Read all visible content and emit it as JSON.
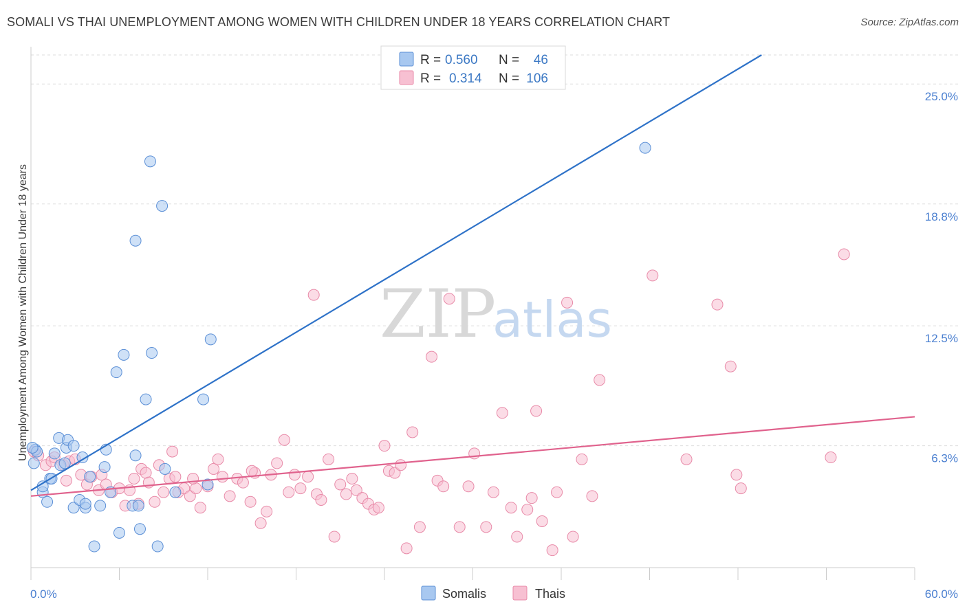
{
  "title": "SOMALI VS THAI UNEMPLOYMENT AMONG WOMEN WITH CHILDREN UNDER 18 YEARS CORRELATION CHART",
  "source": "Source: ZipAtlas.com",
  "watermark": {
    "zip": "ZIP",
    "atlas": "atlas"
  },
  "legend": {
    "somali": {
      "r_label": "R =",
      "r_value": "0.560",
      "n_label": "N =",
      "n_value": "46"
    },
    "thai": {
      "r_label": "R =",
      "r_value": "0.314",
      "n_label": "N =",
      "n_value": "106"
    }
  },
  "colors": {
    "somali_fill": "#a8c8f0",
    "somali_stroke": "#5b8fd6",
    "somali_line": "#2e72c8",
    "thai_fill": "#f7c0d2",
    "thai_stroke": "#e88aa8",
    "thai_line": "#e0628d",
    "grid": "#dddddd",
    "tick_label": "#4a7fd0"
  },
  "chart_data": {
    "type": "scatter",
    "title": "SOMALI VS THAI UNEMPLOYMENT AMONG WOMEN WITH CHILDREN UNDER 18 YEARS CORRELATION CHART",
    "xlabel": "",
    "ylabel": "Unemployment Among Women with Children Under 18 years",
    "xlim": [
      0,
      60
    ],
    "ylim": [
      0,
      26.5
    ],
    "x_tick_labels": [
      "0.0%",
      "60.0%"
    ],
    "y_ticks": [
      6.3,
      12.5,
      18.8,
      25.0
    ],
    "y_tick_labels": [
      "6.3%",
      "12.5%",
      "18.8%",
      "25.0%"
    ],
    "grid": true,
    "legend_position": "top-center",
    "series": [
      {
        "name": "Somalis",
        "trend": {
          "x": [
            0,
            49.6
          ],
          "y": [
            4.0,
            26.5
          ]
        },
        "points": [
          [
            0.2,
            5.4
          ],
          [
            0.3,
            6.1
          ],
          [
            0.4,
            6.0
          ],
          [
            0.8,
            3.9
          ],
          [
            0.8,
            4.2
          ],
          [
            1.1,
            3.4
          ],
          [
            1.3,
            4.6
          ],
          [
            1.4,
            4.6
          ],
          [
            1.6,
            5.9
          ],
          [
            1.9,
            6.7
          ],
          [
            2.0,
            5.3
          ],
          [
            2.3,
            5.4
          ],
          [
            2.4,
            6.2
          ],
          [
            2.5,
            6.6
          ],
          [
            2.9,
            6.3
          ],
          [
            2.9,
            3.1
          ],
          [
            3.3,
            3.5
          ],
          [
            3.5,
            5.7
          ],
          [
            3.7,
            3.1
          ],
          [
            3.7,
            3.3
          ],
          [
            4.0,
            4.7
          ],
          [
            4.3,
            1.1
          ],
          [
            4.7,
            3.2
          ],
          [
            5.0,
            5.2
          ],
          [
            5.1,
            6.1
          ],
          [
            5.4,
            3.9
          ],
          [
            5.8,
            10.1
          ],
          [
            6.0,
            1.8
          ],
          [
            6.3,
            11.0
          ],
          [
            6.9,
            3.2
          ],
          [
            7.1,
            16.9
          ],
          [
            7.1,
            5.8
          ],
          [
            7.3,
            3.2
          ],
          [
            7.4,
            2.0
          ],
          [
            7.8,
            8.7
          ],
          [
            8.1,
            21.0
          ],
          [
            8.2,
            11.1
          ],
          [
            8.6,
            1.1
          ],
          [
            8.9,
            18.7
          ],
          [
            9.1,
            5.1
          ],
          [
            9.8,
            3.9
          ],
          [
            11.7,
            8.7
          ],
          [
            12.0,
            4.3
          ],
          [
            12.2,
            11.8
          ],
          [
            41.7,
            21.7
          ],
          [
            0.1,
            6.2
          ]
        ]
      },
      {
        "name": "Thais",
        "trend": {
          "x": [
            0,
            60
          ],
          "y": [
            3.7,
            7.8
          ]
        },
        "points": [
          [
            0.2,
            6.0
          ],
          [
            0.5,
            5.8
          ],
          [
            1.0,
            5.3
          ],
          [
            1.4,
            5.5
          ],
          [
            1.6,
            5.7
          ],
          [
            2.2,
            5.3
          ],
          [
            2.4,
            4.5
          ],
          [
            2.6,
            5.5
          ],
          [
            3.0,
            5.6
          ],
          [
            3.4,
            4.8
          ],
          [
            3.8,
            4.3
          ],
          [
            4.1,
            4.7
          ],
          [
            4.6,
            4.0
          ],
          [
            4.8,
            4.8
          ],
          [
            5.1,
            4.3
          ],
          [
            5.5,
            3.9
          ],
          [
            6.0,
            4.1
          ],
          [
            6.4,
            3.2
          ],
          [
            6.7,
            4.0
          ],
          [
            7.0,
            4.6
          ],
          [
            7.3,
            3.3
          ],
          [
            7.5,
            5.1
          ],
          [
            7.8,
            4.9
          ],
          [
            8.0,
            4.4
          ],
          [
            8.4,
            3.4
          ],
          [
            8.7,
            5.3
          ],
          [
            9.0,
            3.9
          ],
          [
            9.4,
            4.6
          ],
          [
            9.6,
            6.0
          ],
          [
            9.8,
            4.7
          ],
          [
            10.0,
            3.9
          ],
          [
            10.4,
            4.1
          ],
          [
            10.8,
            3.7
          ],
          [
            11.2,
            4.1
          ],
          [
            11.5,
            3.1
          ],
          [
            12.0,
            4.2
          ],
          [
            12.4,
            5.1
          ],
          [
            12.7,
            5.6
          ],
          [
            13.0,
            4.7
          ],
          [
            13.5,
            3.7
          ],
          [
            14.0,
            4.6
          ],
          [
            14.4,
            4.4
          ],
          [
            14.9,
            3.4
          ],
          [
            15.2,
            4.9
          ],
          [
            15.6,
            2.3
          ],
          [
            16.0,
            2.9
          ],
          [
            16.3,
            4.8
          ],
          [
            16.7,
            5.4
          ],
          [
            17.2,
            6.6
          ],
          [
            17.5,
            3.9
          ],
          [
            17.9,
            4.8
          ],
          [
            18.3,
            4.1
          ],
          [
            18.8,
            4.7
          ],
          [
            19.2,
            14.1
          ],
          [
            19.4,
            3.8
          ],
          [
            19.7,
            3.5
          ],
          [
            20.2,
            5.6
          ],
          [
            20.6,
            1.6
          ],
          [
            21.0,
            4.3
          ],
          [
            21.4,
            3.8
          ],
          [
            21.8,
            4.6
          ],
          [
            22.1,
            4.0
          ],
          [
            22.5,
            3.6
          ],
          [
            22.9,
            3.3
          ],
          [
            23.3,
            3.0
          ],
          [
            23.6,
            3.1
          ],
          [
            24.0,
            6.3
          ],
          [
            24.3,
            5.0
          ],
          [
            24.7,
            4.9
          ],
          [
            25.1,
            5.3
          ],
          [
            25.5,
            1.0
          ],
          [
            25.9,
            7.0
          ],
          [
            26.4,
            2.1
          ],
          [
            27.2,
            10.9
          ],
          [
            27.6,
            4.5
          ],
          [
            28.0,
            4.2
          ],
          [
            28.4,
            13.9
          ],
          [
            29.1,
            2.1
          ],
          [
            29.7,
            4.2
          ],
          [
            30.1,
            5.9
          ],
          [
            30.9,
            2.1
          ],
          [
            31.4,
            3.9
          ],
          [
            32.0,
            8.0
          ],
          [
            32.6,
            3.1
          ],
          [
            33.0,
            1.6
          ],
          [
            33.7,
            3.0
          ],
          [
            34.0,
            3.6
          ],
          [
            34.3,
            8.1
          ],
          [
            34.7,
            2.4
          ],
          [
            35.4,
            0.9
          ],
          [
            35.7,
            3.9
          ],
          [
            36.4,
            13.7
          ],
          [
            36.8,
            1.6
          ],
          [
            37.4,
            5.6
          ],
          [
            38.1,
            3.7
          ],
          [
            38.6,
            9.7
          ],
          [
            42.2,
            15.1
          ],
          [
            44.5,
            5.6
          ],
          [
            46.6,
            13.6
          ],
          [
            47.5,
            10.4
          ],
          [
            47.9,
            4.8
          ],
          [
            48.2,
            4.1
          ],
          [
            54.3,
            5.7
          ],
          [
            55.2,
            16.2
          ],
          [
            15.0,
            5.0
          ],
          [
            11.0,
            4.6
          ]
        ]
      }
    ]
  }
}
